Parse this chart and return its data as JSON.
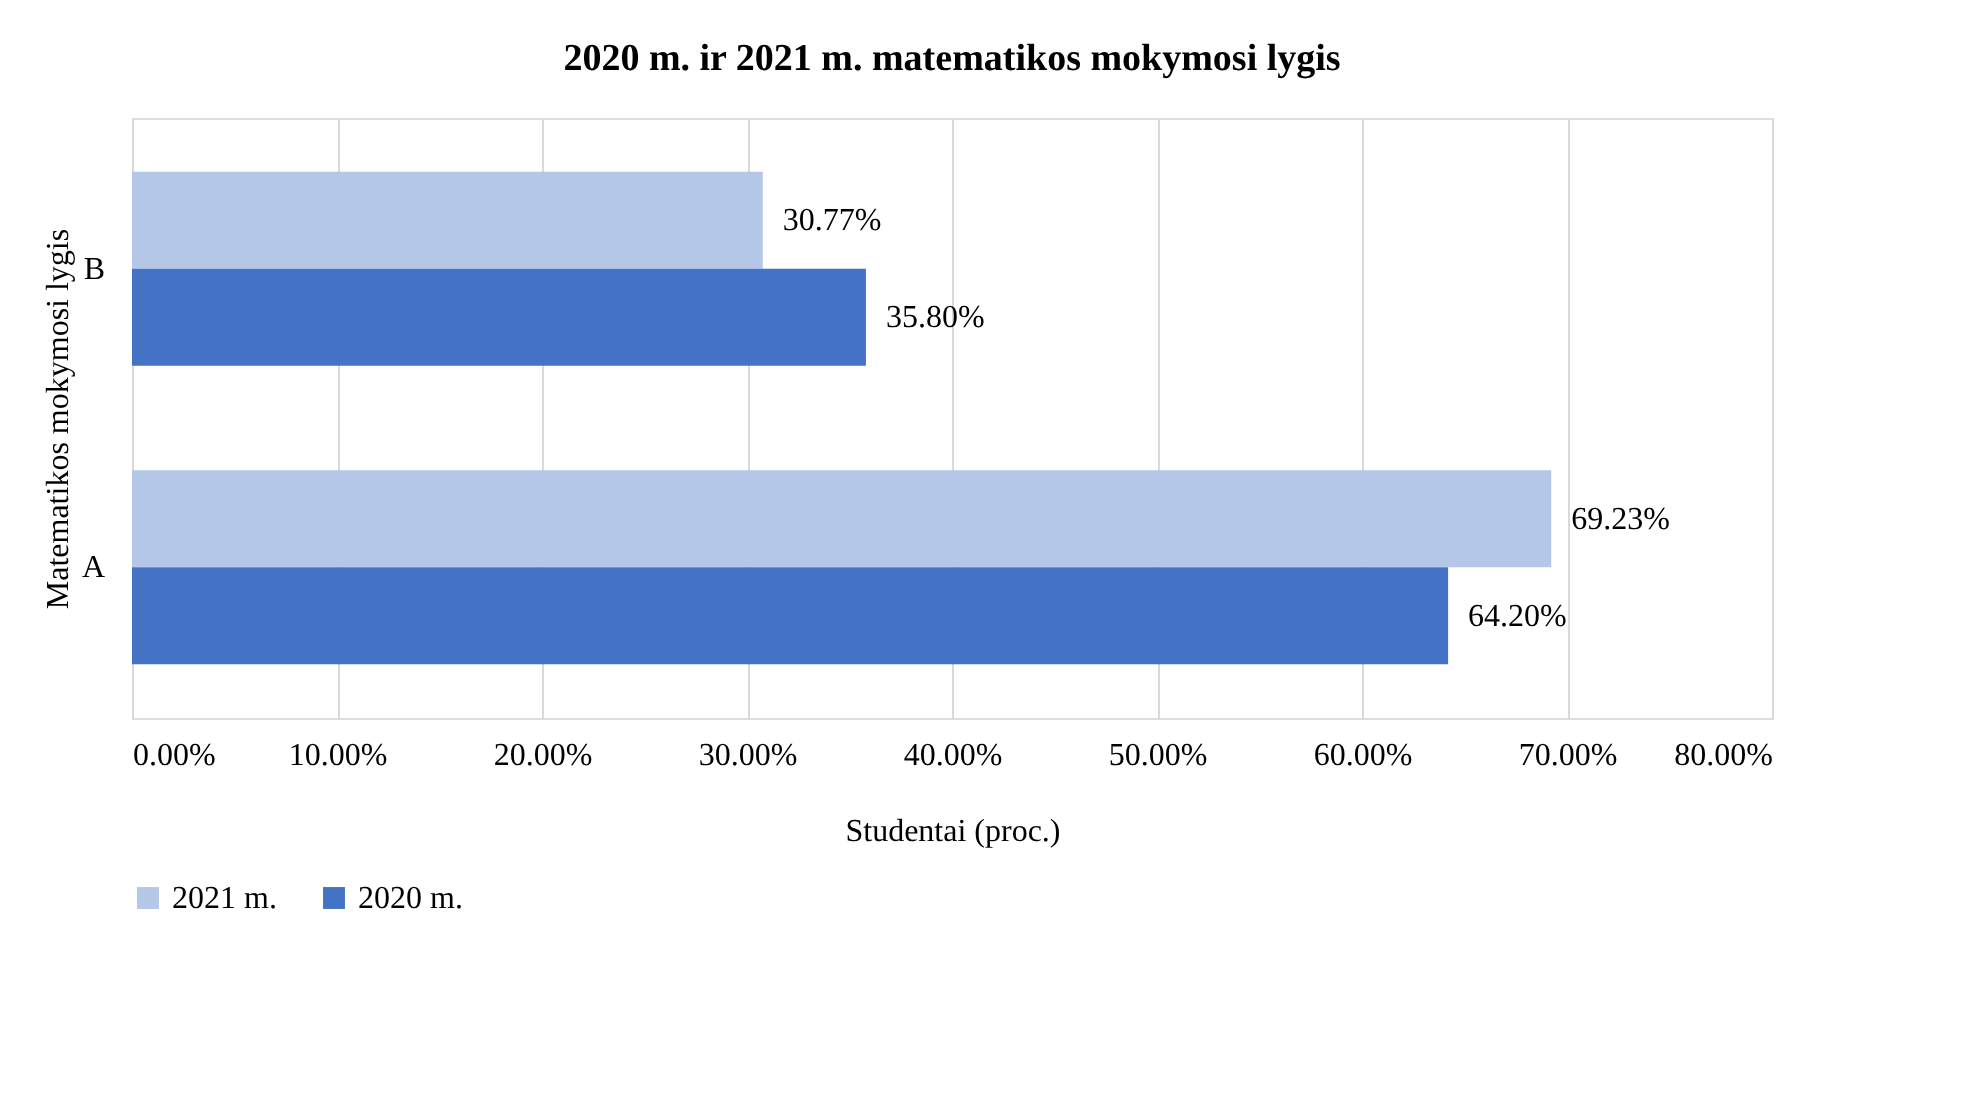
{
  "chart_data": {
    "type": "bar",
    "orientation": "horizontal",
    "title": "2020 m. ir 2021 m. matematikos mokymosi lygis",
    "xlabel": "Studentai (proc.)",
    "ylabel": "Matematikos mokymosi lygis",
    "categories": [
      "B",
      "A"
    ],
    "series": [
      {
        "name": "2021 m.",
        "color": "#b4c7e7",
        "values": [
          30.77,
          69.23
        ],
        "value_labels": [
          "30.77%",
          "69.23%"
        ]
      },
      {
        "name": "2020 m.",
        "color": "#4472c4",
        "values": [
          35.8,
          64.2
        ],
        "value_labels": [
          "35.80%",
          "64.20%"
        ]
      }
    ],
    "xlim": [
      0,
      80
    ],
    "xticks": [
      {
        "value": 0,
        "label": "0.00%"
      },
      {
        "value": 10,
        "label": "10.00%"
      },
      {
        "value": 20,
        "label": "20.00%"
      },
      {
        "value": 30,
        "label": "30.00%"
      },
      {
        "value": 40,
        "label": "40.00%"
      },
      {
        "value": 50,
        "label": "50.00%"
      },
      {
        "value": 60,
        "label": "60.00%"
      },
      {
        "value": 70,
        "label": "70.00%"
      },
      {
        "value": 80,
        "label": "80.00%"
      }
    ],
    "grid": "x",
    "legend": "bottom"
  }
}
